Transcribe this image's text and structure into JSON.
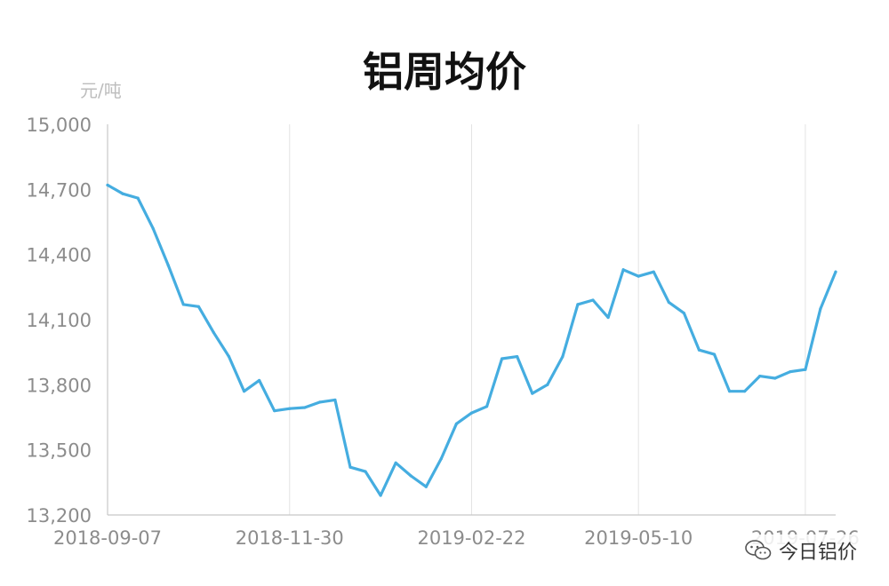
{
  "title": "铝周均价",
  "unit_label": "元/吨",
  "watermark": {
    "text": "今日铝价",
    "icon": "wechat-icon"
  },
  "colors": {
    "line": "#45ade0",
    "grid": "#e3e3e3",
    "axis": "#c8c8c8",
    "tick_text": "#8c8c8c",
    "unit_text": "#bdbdbd"
  },
  "chart_data": {
    "type": "line",
    "title": "铝周均价",
    "ylabel": "元/吨",
    "xlabel": "",
    "ylim": [
      13200,
      15000
    ],
    "y_ticks": [
      13200,
      13500,
      13800,
      14100,
      14400,
      14700,
      15000
    ],
    "y_tick_labels": [
      "13,200",
      "13,500",
      "13,800",
      "14,100",
      "14,400",
      "14,700",
      "15,000"
    ],
    "x": [
      "2018-09-07",
      "2018-09-14",
      "2018-09-21",
      "2018-09-28",
      "2018-10-05",
      "2018-10-12",
      "2018-10-19",
      "2018-10-26",
      "2018-11-02",
      "2018-11-09",
      "2018-11-16",
      "2018-11-23",
      "2018-11-30",
      "2018-12-07",
      "2018-12-14",
      "2018-12-21",
      "2018-12-28",
      "2019-01-04",
      "2019-01-11",
      "2019-01-18",
      "2019-01-25",
      "2019-02-01",
      "2019-02-08",
      "2019-02-15",
      "2019-02-22",
      "2019-03-01",
      "2019-03-08",
      "2019-03-15",
      "2019-03-22",
      "2019-03-29",
      "2019-04-05",
      "2019-04-12",
      "2019-04-19",
      "2019-04-26",
      "2019-05-03",
      "2019-05-10",
      "2019-05-17",
      "2019-05-24",
      "2019-05-31",
      "2019-06-07",
      "2019-06-14",
      "2019-06-21",
      "2019-06-28",
      "2019-07-05",
      "2019-07-12",
      "2019-07-19",
      "2019-07-26",
      "2019-08-02",
      "2019-08-09"
    ],
    "x_tick_labels": [
      "2018-09-07",
      "2018-11-30",
      "2019-02-22",
      "2019-05-10",
      "2019-07-26"
    ],
    "series": [
      {
        "name": "",
        "values": [
          14720,
          14680,
          14660,
          14520,
          14350,
          14170,
          14160,
          14040,
          13930,
          13770,
          13820,
          13680,
          13690,
          13695,
          13720,
          13730,
          13420,
          13400,
          13290,
          13440,
          13380,
          13330,
          13460,
          13620,
          13670,
          13700,
          13920,
          13930,
          13760,
          13800,
          13930,
          14170,
          14190,
          14110,
          14330,
          14300,
          14320,
          14180,
          14130,
          13960,
          13940,
          13770,
          13770,
          13840,
          13830,
          13860,
          13870,
          14150,
          14320
        ]
      }
    ],
    "grid": "vertical",
    "legend": "none"
  }
}
